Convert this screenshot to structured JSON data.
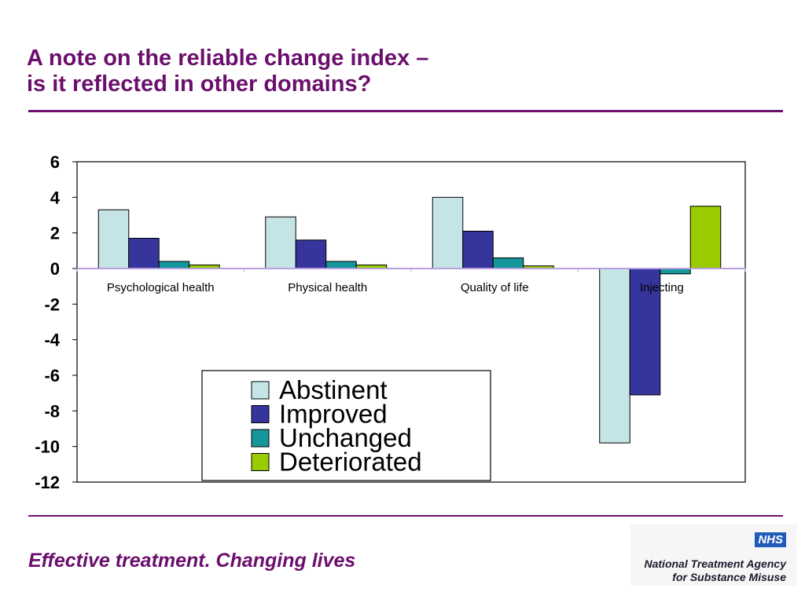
{
  "slide": {
    "title_line1": "A note on the reliable change index –",
    "title_line2": "is it reflected in other domains?",
    "footer_tagline": "Effective treatment. Changing lives",
    "logo": {
      "badge": "NHS",
      "org_line1": "National Treatment Agency",
      "org_line2": "for Substance Misuse"
    }
  },
  "colors": {
    "title": "#6b0f6d",
    "Abstinent": "#c5e4e6",
    "Improved": "#35359c",
    "Unchanged": "#14969a",
    "Deteriorated": "#99cc00"
  },
  "chart_data": {
    "type": "bar",
    "categories": [
      "Psychological health",
      "Physical health",
      "Quality of life",
      "Injecting"
    ],
    "series": [
      {
        "name": "Abstinent",
        "values": [
          3.3,
          2.9,
          4.0,
          -9.8
        ]
      },
      {
        "name": "Improved",
        "values": [
          1.7,
          1.6,
          2.1,
          -7.1
        ]
      },
      {
        "name": "Unchanged",
        "values": [
          0.4,
          0.4,
          0.6,
          -0.3
        ]
      },
      {
        "name": "Deteriorated",
        "values": [
          0.2,
          0.2,
          0.15,
          3.5
        ]
      }
    ],
    "ylim": [
      -12,
      6
    ],
    "yticks": [
      "6",
      "4",
      "2",
      "0",
      "-2",
      "-4",
      "-6",
      "-8",
      "-10",
      "-12"
    ],
    "ytick_values": [
      6,
      4,
      2,
      0,
      -2,
      -4,
      -6,
      -8,
      -10,
      -12
    ],
    "grid": false,
    "legend_position": "bottom-left inside plot"
  }
}
